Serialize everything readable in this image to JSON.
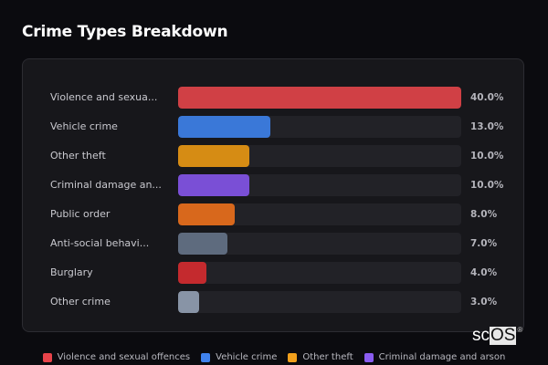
{
  "title": "Crime Types Breakdown",
  "watermark": {
    "prefix": "sc",
    "boxed": "OS",
    "mark": "®"
  },
  "chart_data": {
    "type": "bar",
    "orientation": "horizontal",
    "title": "Crime Types Breakdown",
    "xlabel": "",
    "ylabel": "",
    "xlim": [
      0,
      40
    ],
    "grid": false,
    "legend_position": "bottom",
    "categories": [
      "Violence and sexual offences",
      "Vehicle crime",
      "Other theft",
      "Criminal damage and arson",
      "Public order",
      "Anti-social behaviour",
      "Burglary",
      "Other crime"
    ],
    "display_labels": [
      "Violence and sexua...",
      "Vehicle crime",
      "Other theft",
      "Criminal damage an...",
      "Public order",
      "Anti-social behavi...",
      "Burglary",
      "Other crime"
    ],
    "values": [
      40.0,
      13.0,
      10.0,
      10.0,
      8.0,
      7.0,
      4.0,
      3.0
    ],
    "value_labels": [
      "40.0%",
      "13.0%",
      "10.0%",
      "10.0%",
      "8.0%",
      "7.0%",
      "4.0%",
      "3.0%"
    ],
    "colors": [
      "#d04045",
      "#3a78d8",
      "#d68c14",
      "#7a4fd6",
      "#d8681c",
      "#5e6b7e",
      "#c42a2e",
      "#8894a6"
    ],
    "legend": [
      {
        "label": "Violence and sexual offences",
        "color": "#e8434a"
      },
      {
        "label": "Vehicle crime",
        "color": "#3f82ec"
      },
      {
        "label": "Other theft",
        "color": "#f2a01c"
      },
      {
        "label": "Criminal damage and arson",
        "color": "#8a5cf0"
      }
    ]
  }
}
